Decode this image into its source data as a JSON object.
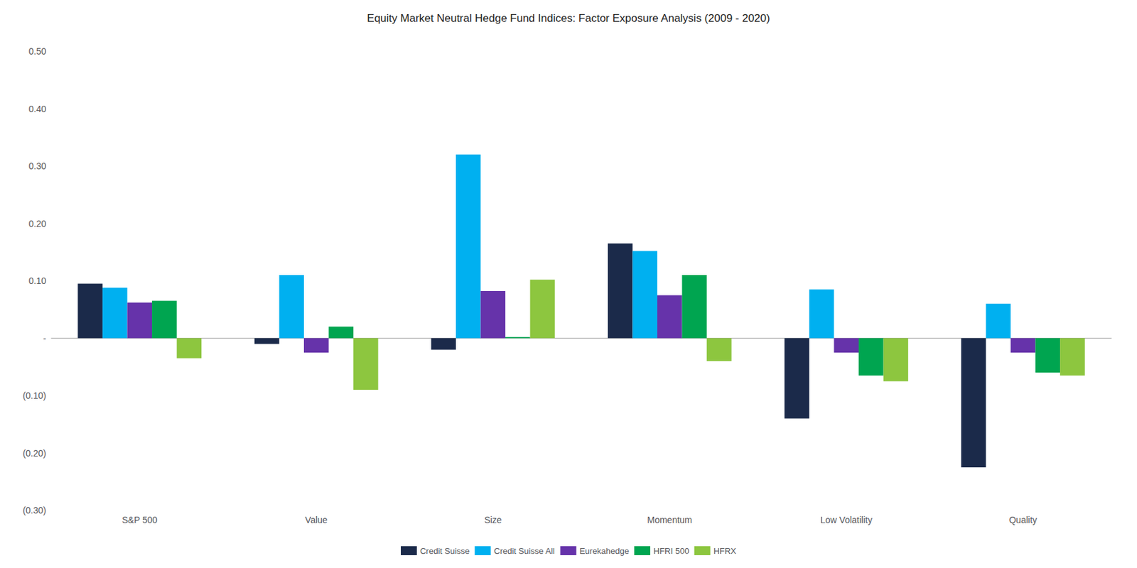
{
  "chart_data": {
    "type": "bar",
    "title": "Equity Market Neutral Hedge Fund Indices: Factor Exposure Analysis (2009 - 2020)",
    "categories": [
      "S&P 500",
      "Value",
      "Size",
      "Momentum",
      "Low Volatility",
      "Quality"
    ],
    "series": [
      {
        "name": "Credit Suisse",
        "color": "#1b2a4a",
        "values": [
          0.095,
          -0.01,
          -0.02,
          0.165,
          -0.14,
          -0.225
        ]
      },
      {
        "name": "Credit Suisse All",
        "color": "#00b0f0",
        "values": [
          0.088,
          0.11,
          0.32,
          0.152,
          0.085,
          0.06
        ]
      },
      {
        "name": "Eurekahedge",
        "color": "#6633aa",
        "values": [
          0.062,
          -0.025,
          0.082,
          0.075,
          -0.025,
          -0.025
        ]
      },
      {
        "name": "HFRI 500",
        "color": "#00a550",
        "values": [
          0.065,
          0.02,
          0.002,
          0.11,
          -0.065,
          -0.06
        ]
      },
      {
        "name": "HFRX",
        "color": "#8dc63f",
        "values": [
          -0.035,
          -0.09,
          0.102,
          -0.04,
          -0.075,
          -0.065
        ]
      }
    ],
    "ylim": [
      -0.3,
      0.5
    ],
    "yticks": [
      {
        "value": -0.3,
        "label": "(0.30)"
      },
      {
        "value": -0.2,
        "label": "(0.20)"
      },
      {
        "value": -0.1,
        "label": "(0.10)"
      },
      {
        "value": 0.0,
        "label": "-"
      },
      {
        "value": 0.1,
        "label": "0.10"
      },
      {
        "value": 0.2,
        "label": "0.20"
      },
      {
        "value": 0.3,
        "label": "0.30"
      },
      {
        "value": 0.4,
        "label": "0.40"
      },
      {
        "value": 0.5,
        "label": "0.50"
      }
    ],
    "grid": false,
    "legend": "bottom"
  }
}
